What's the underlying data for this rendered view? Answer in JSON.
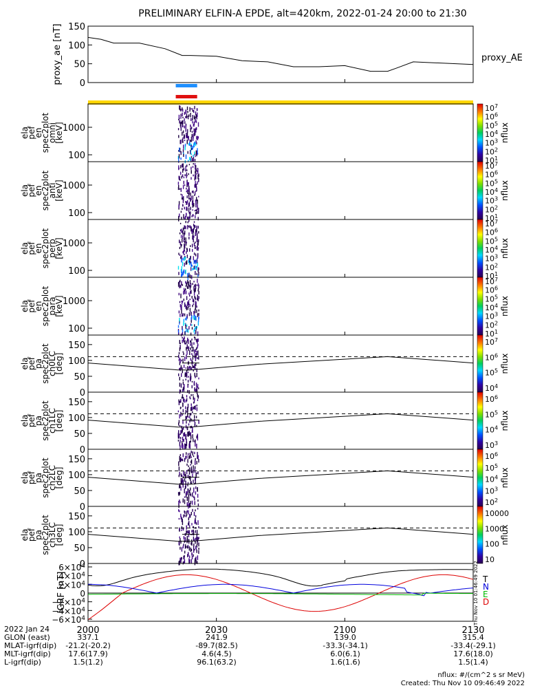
{
  "chart_data": {
    "title": "PRELIMINARY ELFIN-A EPDE, alt=420km, 2022-01-24 20:00 to 21:30",
    "x_range_minutes": [
      0,
      90
    ],
    "ae_panel": {
      "type": "line",
      "ylabel": "proxy_ae [nT]",
      "legend": "proxy_AE",
      "ylim": [
        0,
        150
      ],
      "yticks": [
        "150",
        "100",
        "50",
        "0"
      ],
      "x": [
        0,
        3,
        6,
        12,
        18,
        22,
        24,
        30,
        36,
        42,
        48,
        54,
        60,
        66,
        70,
        72,
        76,
        90
      ],
      "y": [
        120,
        115,
        105,
        105,
        90,
        72,
        72,
        70,
        58,
        55,
        42,
        42,
        45,
        30,
        30,
        38,
        55,
        48
      ]
    },
    "bars": [
      {
        "color": "#1f8fff",
        "start_min": 20.5,
        "end_min": 25.5
      },
      {
        "color": "#e01010",
        "start_min": 20.5,
        "end_min": 25.5
      },
      {
        "color": "#ffd700",
        "start_min": 0,
        "end_min": 90
      }
    ],
    "energy_panels": [
      {
        "labels": [
          "ela",
          "pef",
          "en",
          "spec2plot",
          "omni",
          "[keV]"
        ],
        "cb_label": "nflux"
      },
      {
        "labels": [
          "ela",
          "pef",
          "en",
          "spec2plot",
          "anti",
          "[keV]"
        ],
        "cb_label": "nflux"
      },
      {
        "labels": [
          "ela",
          "pef",
          "en",
          "spec2plot",
          "perp",
          "[keV]"
        ],
        "cb_label": "nflux"
      },
      {
        "labels": [
          "ela",
          "pef",
          "en",
          "spec2plot",
          "para",
          "[keV]"
        ],
        "cb_label": "nflux"
      }
    ],
    "energy_yticks": [
      "1000",
      "100"
    ],
    "energy_cb_ticks": [
      "10^7",
      "10^6",
      "10^5",
      "10^4",
      "10^3",
      "10^2",
      "10^1"
    ],
    "pa_panels": [
      {
        "labels": [
          "ela",
          "pef",
          "pa",
          "spec2plot",
          "ch0LC",
          "[deg]"
        ],
        "cb_label": "nflux",
        "cb_ticks": [
          "10^7",
          "10^6",
          "10^5",
          "10^4"
        ]
      },
      {
        "labels": [
          "ela",
          "pef",
          "pa",
          "spec2plot",
          "ch1LC",
          "[deg]"
        ],
        "cb_label": "nflux",
        "cb_ticks": [
          "10^6",
          "10^5",
          "10^4",
          "10^3"
        ]
      },
      {
        "labels": [
          "ela",
          "pef",
          "pa",
          "spec2plot",
          "ch2LC",
          "[deg]"
        ],
        "cb_label": "nflux",
        "cb_ticks": [
          "10^6",
          "10^5",
          "10^4",
          "10^3",
          "10^2"
        ]
      },
      {
        "labels": [
          "ela",
          "pef",
          "pa",
          "spec2plot",
          "ch3LC",
          "[deg]"
        ],
        "cb_label": "nflux",
        "cb_ticks": [
          "10000",
          "1000",
          "100",
          "10"
        ]
      }
    ],
    "pa_yticks": [
      "150",
      "100",
      "50",
      "0"
    ],
    "igrf_panel": {
      "ylabel": "IGRF [nT]",
      "yticks": [
        "6×10^4",
        "4×10^4",
        "2×10^4",
        "0",
        "−2×10^4",
        "−4×10^4",
        "−6×10^4"
      ],
      "legend": [
        {
          "label": "T",
          "color": "#000000"
        },
        {
          "label": "N",
          "color": "#0000dd"
        },
        {
          "label": "E",
          "color": "#00bb00"
        },
        {
          "label": "D",
          "color": "#dd0000"
        }
      ],
      "side_text": "Thu Nov 10 01:46:49 2022"
    },
    "x_axis": {
      "tick_labels": [
        "2000",
        "2030",
        "2100",
        "2130"
      ],
      "tick_minutes": [
        0,
        30,
        60,
        90
      ]
    }
  },
  "footer": {
    "date": "2022 Jan 24",
    "rows": [
      {
        "label": "GLON (east)",
        "values": [
          "337.1",
          "241.9",
          "139.0",
          "315.4"
        ]
      },
      {
        "label": "MLAT-igrf(dip)",
        "values": [
          "-21.2(-20.2)",
          "-89.7(82.5)",
          "-33.3(-34.1)",
          "-33.4(-29.1)"
        ]
      },
      {
        "label": "MLT-igrf(dip)",
        "values": [
          "17.6(17.9)",
          "4.6(4.5)",
          "6.0(6.1)",
          "17.6(18.0)"
        ]
      },
      {
        "label": "L-igrf(dip)",
        "values": [
          "1.5(1.2)",
          "96.1(63.2)",
          "1.6(1.6)",
          "1.5(1.4)"
        ]
      }
    ],
    "units_note": "nflux: #/(cm^2 s sr MeV)",
    "created": "Created: Thu Nov 10 09:46:49 2022"
  }
}
